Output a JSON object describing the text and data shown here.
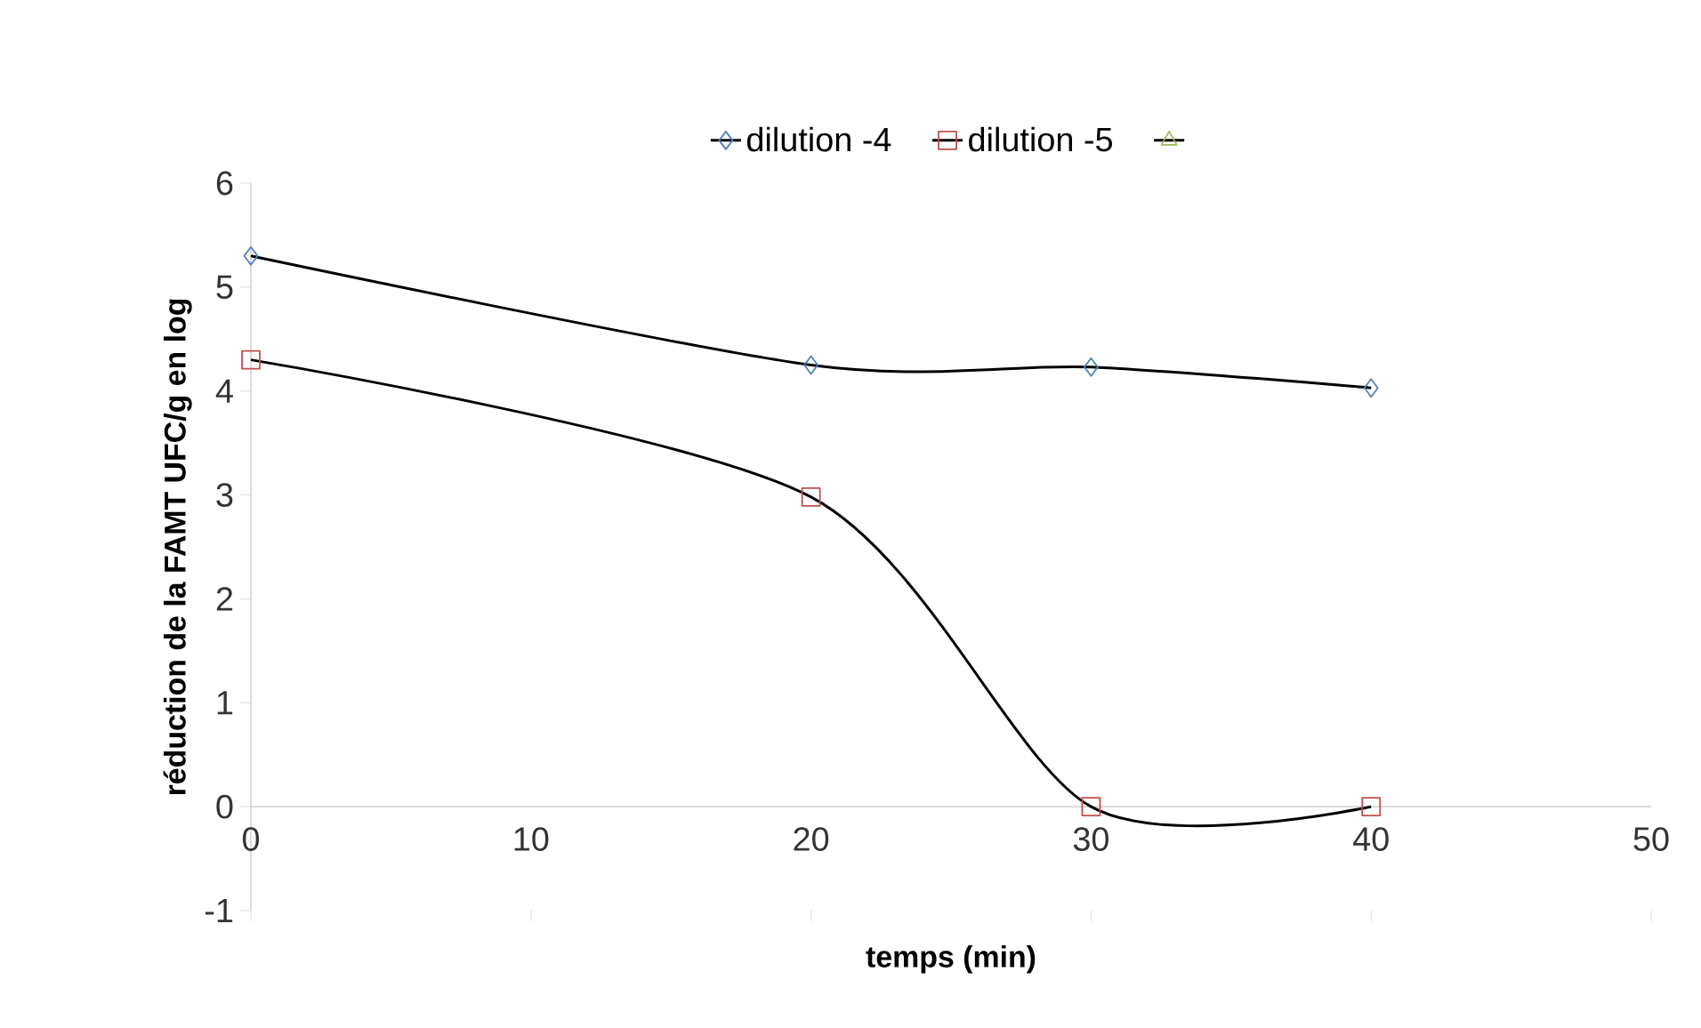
{
  "chart_data": {
    "type": "line",
    "xlabel": "temps (min)",
    "ylabel": "réduction de la FAMT UFC/g en log",
    "x": [
      0,
      20,
      30,
      40
    ],
    "series": [
      {
        "name": "dilution -4",
        "color": "#4f81bd",
        "marker": "diamond",
        "values": [
          5.3,
          4.25,
          4.23,
          4.03
        ]
      },
      {
        "name": "dilution -5",
        "color": "#c0504d",
        "marker": "square",
        "values": [
          4.3,
          2.98,
          0,
          0
        ]
      },
      {
        "color": "#9bbb59",
        "marker": "triangle",
        "values": [
          null,
          null,
          null,
          null
        ]
      }
    ],
    "xlim": [
      0,
      50
    ],
    "xticks": [
      0,
      10,
      20,
      30,
      40,
      50
    ],
    "ylim": [
      -1,
      6
    ],
    "yticks": [
      -1,
      0,
      1,
      2,
      3,
      4,
      5,
      6
    ],
    "grid": false,
    "legend": "top",
    "line_style": "solid"
  }
}
